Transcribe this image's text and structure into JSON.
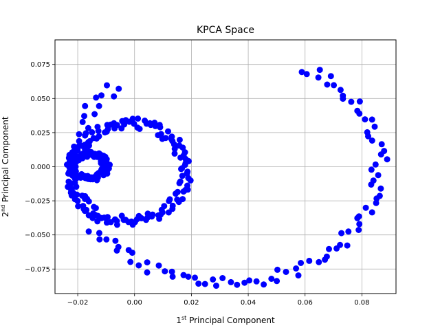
{
  "chart_data": {
    "type": "scatter",
    "title": "KPCA Space",
    "xlabel": {
      "main": "1",
      "sup": "st",
      "rest": " Principal Component"
    },
    "ylabel": {
      "main": "2",
      "sup": "nd",
      "rest": " Principal Component"
    },
    "xlim": [
      -0.028,
      0.092
    ],
    "ylim": [
      -0.093,
      0.093
    ],
    "xticks": [
      -0.02,
      0.0,
      0.02,
      0.04,
      0.06,
      0.08
    ],
    "xtick_labels": [
      "−0.02",
      "0.00",
      "0.02",
      "0.04",
      "0.06",
      "0.08"
    ],
    "yticks": [
      -0.075,
      -0.05,
      -0.025,
      0.0,
      0.025,
      0.05,
      0.075
    ],
    "ytick_labels": [
      "−0.075",
      "−0.050",
      "−0.025",
      "0.000",
      "0.025",
      "0.050",
      "0.075"
    ],
    "grid": true,
    "marker_color": "#0000ff",
    "rings": [
      {
        "name": "outer",
        "cx": 0.032,
        "cy": 0.0,
        "rx": 0.054,
        "ry": 0.085,
        "count": 150,
        "jitter": 0.003,
        "gap": [
          1.05,
          2.35
        ]
      },
      {
        "name": "middle",
        "cx": -0.002,
        "cy": -0.004,
        "rx": 0.02,
        "ry": 0.036,
        "count": 150,
        "jitter": 0.0025,
        "gap": null
      },
      {
        "name": "inner",
        "cx": -0.016,
        "cy": 0.0,
        "rx": 0.006,
        "ry": 0.009,
        "count": 100,
        "jitter": 0.0015,
        "gap": null
      }
    ]
  }
}
